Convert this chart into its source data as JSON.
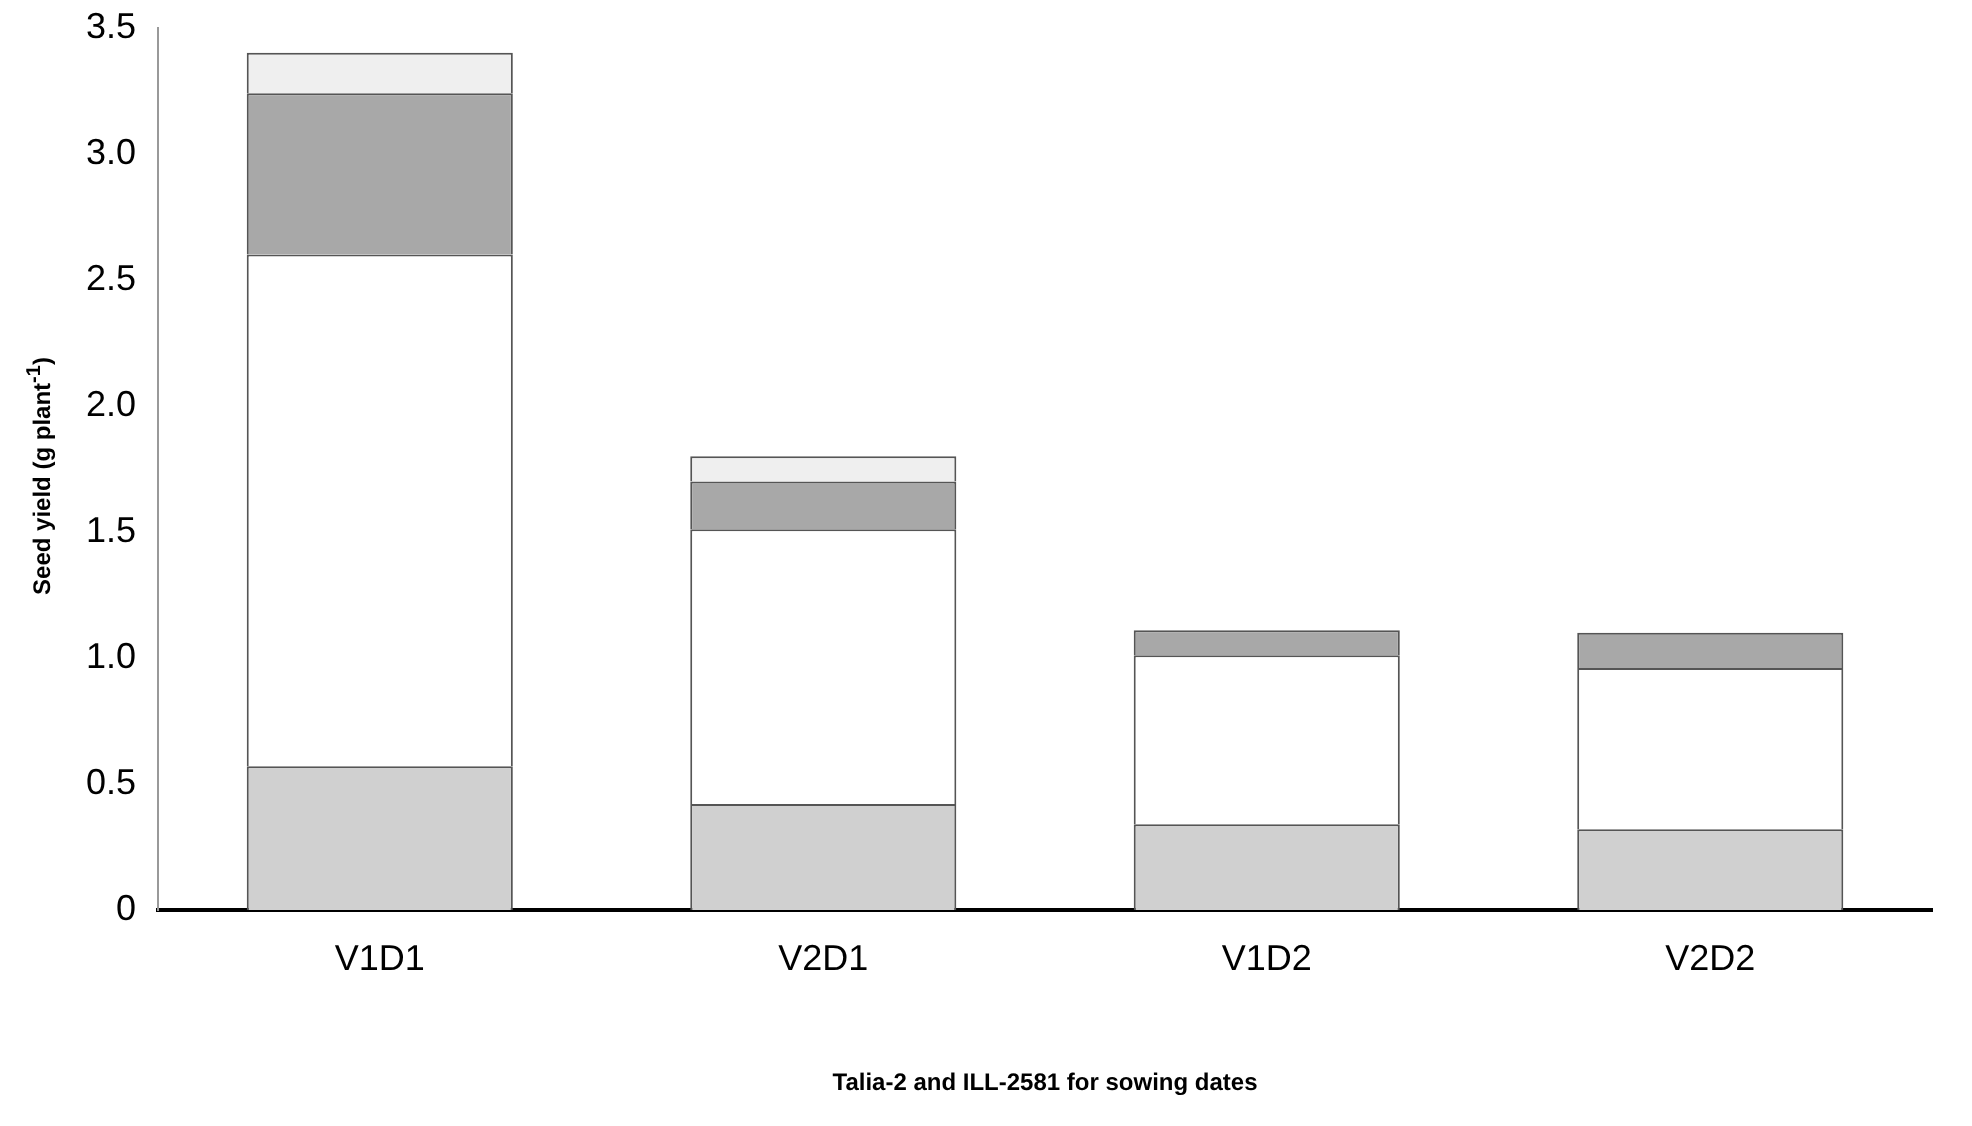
{
  "chart_data": {
    "type": "bar",
    "stacked": true,
    "xlabel": "Talia-2 and ILL-2581 for sowing dates",
    "ylabel": "Seed yield (g plant$^{-1}$)",
    "categories": [
      "V1D1",
      "V2D1",
      "V1D2",
      "V2D2"
    ],
    "series": [
      {
        "color": "#d0d0d0",
        "values": [
          0.57,
          0.42,
          0.34,
          0.32
        ]
      },
      {
        "color": "#ffffff",
        "values": [
          2.03,
          1.09,
          0.67,
          0.64
        ]
      },
      {
        "color": "#a8a8a8",
        "values": [
          0.64,
          0.19,
          0.1,
          0.14
        ]
      },
      {
        "color": "#efefef",
        "values": [
          0.16,
          0.1,
          0,
          0
        ]
      }
    ],
    "ylim": [
      0,
      3.5
    ],
    "yticks": [
      {
        "value": 0,
        "label": "0"
      },
      {
        "value": 0.5,
        "label": "0.5"
      },
      {
        "value": 1,
        "label": "1.0"
      },
      {
        "value": 1.5,
        "label": "1.5"
      },
      {
        "value": 2,
        "label": "2.0"
      },
      {
        "value": 2.5,
        "label": "2.5"
      },
      {
        "value": 3,
        "label": "3.0"
      },
      {
        "value": 3.5,
        "label": "3.5"
      }
    ],
    "grid": false,
    "legend": false
  }
}
